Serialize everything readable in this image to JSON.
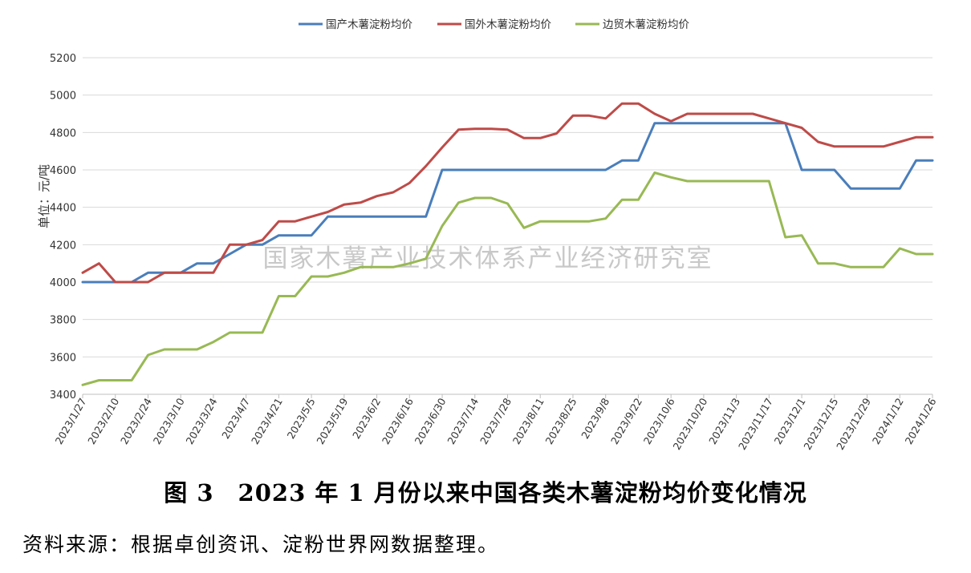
{
  "chart_data": {
    "type": "line",
    "ylabel": "单位：元/吨",
    "ylim": [
      3400,
      5200
    ],
    "yticks": [
      3400,
      3600,
      3800,
      4000,
      4200,
      4400,
      4600,
      4800,
      5000,
      5200
    ],
    "grid": true,
    "legend_position": "top-center",
    "x_tick_labels": [
      "2023/1/27",
      "2023/2/10",
      "2023/2/24",
      "2023/3/10",
      "2023/3/24",
      "2023/4/7",
      "2023/4/21",
      "2023/5/5",
      "2023/5/19",
      "2023/6/2",
      "2023/6/16",
      "2023/6/30",
      "2023/7/14",
      "2023/7/28",
      "2023/8/11",
      "2023/8/25",
      "2023/9/8",
      "2023/9/22",
      "2023/10/6",
      "2023/10/20",
      "2023/11/3",
      "2023/11/17",
      "2023/12/1",
      "2023/12/15",
      "2023/12/29",
      "2024/1/12",
      "2024/1/26"
    ],
    "x": [
      "2023/1/27",
      "2023/2/3",
      "2023/2/10",
      "2023/2/17",
      "2023/2/24",
      "2023/3/3",
      "2023/3/10",
      "2023/3/17",
      "2023/3/24",
      "2023/3/31",
      "2023/4/7",
      "2023/4/14",
      "2023/4/21",
      "2023/4/28",
      "2023/5/5",
      "2023/5/12",
      "2023/5/19",
      "2023/5/26",
      "2023/6/2",
      "2023/6/9",
      "2023/6/16",
      "2023/6/23",
      "2023/6/30",
      "2023/7/7",
      "2023/7/14",
      "2023/7/21",
      "2023/7/28",
      "2023/8/4",
      "2023/8/11",
      "2023/8/18",
      "2023/8/25",
      "2023/9/1",
      "2023/9/8",
      "2023/9/15",
      "2023/9/22",
      "2023/9/29",
      "2023/10/6",
      "2023/10/13",
      "2023/10/20",
      "2023/10/27",
      "2023/11/3",
      "2023/11/10",
      "2023/11/17",
      "2023/11/24",
      "2023/12/1",
      "2023/12/8",
      "2023/12/15",
      "2023/12/22",
      "2023/12/29",
      "2024/1/5",
      "2024/1/12",
      "2024/1/19",
      "2024/1/26"
    ],
    "series": [
      {
        "name": "国产木薯淀粉均价",
        "color": "#4a7ebb",
        "values": [
          4000,
          4000,
          4000,
          4000,
          4050,
          4050,
          4050,
          4100,
          4100,
          4150,
          4200,
          4200,
          4250,
          4250,
          4250,
          4350,
          4350,
          4350,
          4350,
          4350,
          4350,
          4350,
          4600,
          4600,
          4600,
          4600,
          4600,
          4600,
          4600,
          4600,
          4600,
          4600,
          4600,
          4650,
          4650,
          4850,
          4850,
          4850,
          4850,
          4850,
          4850,
          4850,
          4850,
          4850,
          4600,
          4600,
          4600,
          4500,
          4500,
          4500,
          4500,
          4650,
          4650
        ]
      },
      {
        "name": "国外木薯淀粉均价",
        "color": "#be4b48",
        "values": [
          4050,
          4100,
          4000,
          4000,
          4000,
          4050,
          4050,
          4050,
          4050,
          4200,
          4200,
          4225,
          4325,
          4325,
          4350,
          4375,
          4415,
          4425,
          4460,
          4480,
          4530,
          4620,
          4720,
          4815,
          4820,
          4820,
          4815,
          4770,
          4770,
          4795,
          4890,
          4890,
          4875,
          4955,
          4955,
          4900,
          4860,
          4900,
          4900,
          4900,
          4900,
          4900,
          4875,
          4850,
          4825,
          4750,
          4725,
          4725,
          4725,
          4725,
          4750,
          4775,
          4775
        ]
      },
      {
        "name": "边贸木薯淀粉均价",
        "color": "#98b954",
        "values": [
          3450,
          3475,
          3475,
          3475,
          3610,
          3640,
          3640,
          3640,
          3680,
          3730,
          3730,
          3730,
          3925,
          3925,
          4030,
          4030,
          4050,
          4080,
          4080,
          4080,
          4100,
          4125,
          4300,
          4425,
          4450,
          4450,
          4420,
          4290,
          4325,
          4325,
          4325,
          4325,
          4340,
          4440,
          4440,
          4585,
          4560,
          4540,
          4540,
          4540,
          4540,
          4540,
          4540,
          4240,
          4250,
          4100,
          4100,
          4080,
          4080,
          4080,
          4180,
          4150,
          4150
        ]
      }
    ]
  },
  "watermark": "国家木薯产业技术体系产业经济研究室",
  "caption": "图 3　2023 年 1 月份以来中国各类木薯淀粉均价变化情况",
  "source": "资料来源：根据卓创资讯、淀粉世界网数据整理。"
}
